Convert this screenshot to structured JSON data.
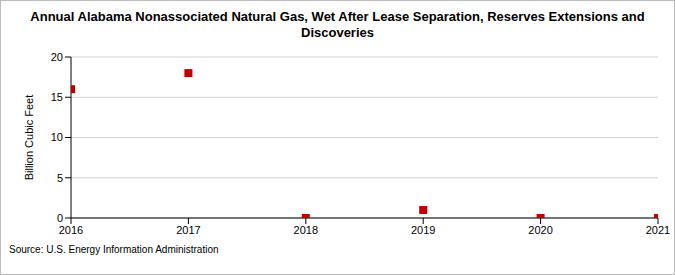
{
  "chart_data": {
    "type": "scatter",
    "title": "Annual Alabama Nonassociated Natural Gas, Wet After Lease Separation, Reserves Extensions and Discoveries",
    "y_label": "Billion Cubic Feet",
    "source": "Source: U.S. Energy Information Administration",
    "x": [
      2016,
      2017,
      2018,
      2019,
      2020,
      2021
    ],
    "values": [
      16,
      18,
      0,
      1,
      0,
      0
    ],
    "color": "#c00000",
    "marker": "square",
    "xlim": [
      2016,
      2021
    ],
    "xticks": [
      2016,
      2017,
      2018,
      2019,
      2020,
      2021
    ],
    "ylim": [
      0,
      20
    ],
    "yticks": [
      0,
      5,
      10,
      15,
      20
    ],
    "grid": true
  }
}
